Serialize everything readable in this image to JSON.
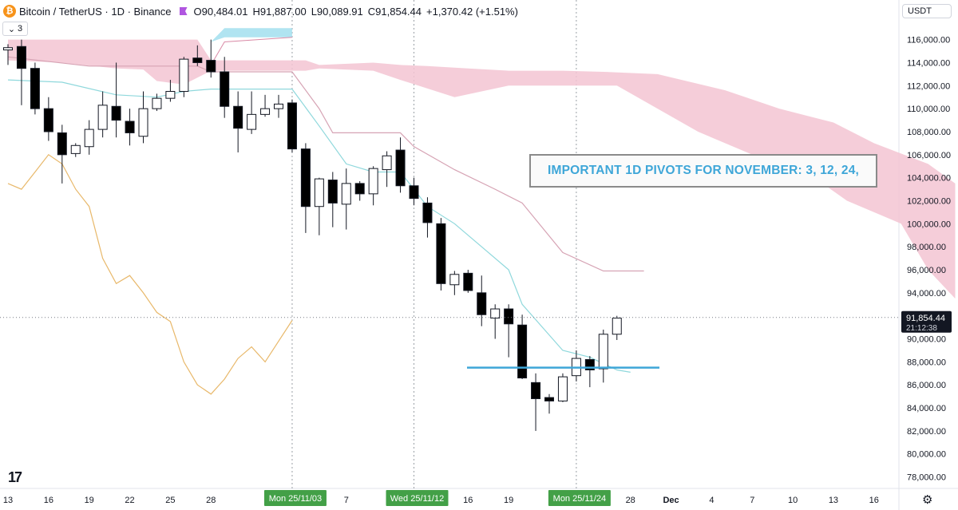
{
  "header": {
    "logo_glyph": "₿",
    "symbol": "Bitcoin / TetherUS · 1D · Binance",
    "open": "O90,484.01",
    "high": "H91,887.00",
    "low": "L90,089.91",
    "close": "C91,854.44",
    "change": "+1,370.42 (+1.51%)",
    "indicator_toggle": "3"
  },
  "toolbar": {
    "currency": "USDT"
  },
  "annotation": {
    "text": "IMPORTANT 1D PIVOTS FOR NOVEMBER: 3, 12, 24,"
  },
  "chart_data": {
    "type": "candlestick",
    "ylim": [
      77000,
      117500
    ],
    "y_ticks": [
      78000,
      80000,
      82000,
      84000,
      86000,
      88000,
      90000,
      92000,
      94000,
      96000,
      98000,
      100000,
      102000,
      104000,
      106000,
      108000,
      110000,
      112000,
      114000,
      116000
    ],
    "y_tick_labels": [
      "78,000.00",
      "80,000.00",
      "82,000.00",
      "84,000.00",
      "86,000.00",
      "88,000.00",
      "90,000.00",
      "92,000.00",
      "94,000.00",
      "96,000.00",
      "98,000.00",
      "100,000.00",
      "102,000.00",
      "104,000.00",
      "106,000.00",
      "108,000.00",
      "110,000.00",
      "112,000.00",
      "114,000.00",
      "116,000.00"
    ],
    "x_ticks": [
      {
        "label": "13",
        "i": 0
      },
      {
        "label": "16",
        "i": 3
      },
      {
        "label": "19",
        "i": 6
      },
      {
        "label": "22",
        "i": 9
      },
      {
        "label": "25",
        "i": 12
      },
      {
        "label": "28",
        "i": 15
      },
      {
        "label": "7",
        "i": 25
      },
      {
        "label": "16",
        "i": 34
      },
      {
        "label": "19",
        "i": 37
      },
      {
        "label": "28",
        "i": 46
      },
      {
        "label": "Dec",
        "i": 49,
        "bold": true
      },
      {
        "label": "4",
        "i": 52
      },
      {
        "label": "7",
        "i": 55
      },
      {
        "label": "10",
        "i": 58
      },
      {
        "label": "13",
        "i": 61
      },
      {
        "label": "16",
        "i": 64
      }
    ],
    "highlighted_dates": [
      {
        "label": "Mon 25/11/03",
        "i": 21
      },
      {
        "label": "Wed 25/11/12",
        "i": 30
      },
      {
        "label": "Mon 25/11/24",
        "i": 42
      }
    ],
    "last_price": {
      "value": 91854.44,
      "label": "91,854.44",
      "countdown": "21:12:38"
    },
    "pivot_level": 87500,
    "candles": [
      [
        115100,
        115600,
        113800,
        115300
      ],
      [
        115400,
        116000,
        110300,
        113500
      ],
      [
        113500,
        114000,
        109500,
        110000
      ],
      [
        110000,
        111000,
        107200,
        108000
      ],
      [
        107900,
        108600,
        103500,
        106000
      ],
      [
        106100,
        107000,
        105800,
        106800
      ],
      [
        106700,
        109000,
        106000,
        108200
      ],
      [
        108200,
        111500,
        107500,
        110300
      ],
      [
        110200,
        114000,
        107500,
        109000
      ],
      [
        108900,
        110000,
        106800,
        107900
      ],
      [
        107600,
        111500,
        107000,
        110000
      ],
      [
        110000,
        111300,
        109800,
        110900
      ],
      [
        110900,
        112500,
        110600,
        111500
      ],
      [
        111500,
        114500,
        111000,
        114300
      ],
      [
        114400,
        115500,
        113700,
        114000
      ],
      [
        114200,
        116000,
        112700,
        113200
      ],
      [
        113200,
        114500,
        109200,
        110200
      ],
      [
        110200,
        111500,
        106200,
        108300
      ],
      [
        108200,
        111500,
        107800,
        109500
      ],
      [
        109500,
        111200,
        109300,
        110000
      ],
      [
        110000,
        111200,
        109200,
        110400
      ],
      [
        110500,
        110800,
        106200,
        106500
      ],
      [
        106500,
        107000,
        99200,
        101500
      ],
      [
        101500,
        104000,
        99000,
        103900
      ],
      [
        103800,
        104500,
        99700,
        101800
      ],
      [
        101700,
        104800,
        99500,
        103500
      ],
      [
        103500,
        103700,
        102000,
        102600
      ],
      [
        102600,
        105000,
        101600,
        104800
      ],
      [
        104700,
        106300,
        103200,
        105900
      ],
      [
        106400,
        107500,
        102700,
        103300
      ],
      [
        103300,
        104000,
        101600,
        102200
      ],
      [
        101800,
        102300,
        98800,
        100100
      ],
      [
        100000,
        100500,
        94200,
        94800
      ],
      [
        94700,
        95900,
        93800,
        95600
      ],
      [
        95700,
        96000,
        94000,
        94200
      ],
      [
        94000,
        95500,
        91100,
        92100
      ],
      [
        91800,
        93000,
        90000,
        92600
      ],
      [
        92600,
        93000,
        88400,
        91300
      ],
      [
        91200,
        92100,
        86500,
        86600
      ],
      [
        86200,
        87000,
        82000,
        84800
      ],
      [
        84900,
        85200,
        83500,
        84600
      ],
      [
        84600,
        87000,
        84500,
        86700
      ],
      [
        86800,
        89000,
        86300,
        88300
      ],
      [
        88200,
        88500,
        85800,
        87300
      ],
      [
        87400,
        90800,
        86200,
        90400
      ],
      [
        90400,
        92000,
        89900,
        91800
      ]
    ],
    "kijun": [
      [
        0,
        114500
      ],
      [
        6,
        113700
      ],
      [
        7,
        113700
      ],
      [
        14,
        113700
      ],
      [
        15,
        113200
      ],
      [
        21,
        113200
      ],
      [
        23,
        110000
      ],
      [
        24,
        107900
      ],
      [
        29,
        107900
      ],
      [
        30,
        106700
      ],
      [
        33,
        104700
      ],
      [
        36,
        103000
      ],
      [
        38,
        101800
      ],
      [
        41,
        97500
      ],
      [
        44,
        95900
      ],
      [
        47,
        95900
      ]
    ],
    "tenkan": [
      [
        0,
        112500
      ],
      [
        4,
        112300
      ],
      [
        8,
        111200
      ],
      [
        11,
        111000
      ],
      [
        13,
        111500
      ],
      [
        15,
        111700
      ],
      [
        21,
        111700
      ],
      [
        23,
        108500
      ],
      [
        25,
        105200
      ],
      [
        27,
        104500
      ],
      [
        29,
        104500
      ],
      [
        31,
        101500
      ],
      [
        33,
        100000
      ],
      [
        35,
        98000
      ],
      [
        37,
        96000
      ],
      [
        38,
        93000
      ],
      [
        41,
        89000
      ],
      [
        43,
        88400
      ],
      [
        45,
        87300
      ],
      [
        46,
        87100
      ]
    ],
    "chikou": [
      [
        0,
        103500
      ],
      [
        1,
        103000
      ],
      [
        2,
        104500
      ],
      [
        3,
        106000
      ],
      [
        4,
        105200
      ],
      [
        5,
        103000
      ],
      [
        6,
        101500
      ],
      [
        7,
        97000
      ],
      [
        8,
        94800
      ],
      [
        9,
        95500
      ],
      [
        10,
        94000
      ],
      [
        11,
        92300
      ],
      [
        12,
        91500
      ],
      [
        13,
        88000
      ],
      [
        14,
        86000
      ],
      [
        15,
        85200
      ],
      [
        16,
        86500
      ],
      [
        17,
        88300
      ],
      [
        18,
        89300
      ],
      [
        19,
        88000
      ],
      [
        20,
        89800
      ],
      [
        21,
        91600
      ]
    ],
    "cloud_pink_upper": [
      [
        0,
        116000
      ],
      [
        14,
        116000
      ],
      [
        15,
        114200
      ],
      [
        22,
        114200
      ],
      [
        23,
        113800
      ],
      [
        27,
        114000
      ],
      [
        29,
        113800
      ],
      [
        31,
        113700
      ],
      [
        34,
        113500
      ],
      [
        37,
        113300
      ],
      [
        41,
        113300
      ],
      [
        44,
        113200
      ],
      [
        48,
        113000
      ],
      [
        53,
        111600
      ],
      [
        57,
        110000
      ],
      [
        61,
        108800
      ],
      [
        64,
        107000
      ],
      [
        68,
        105200
      ],
      [
        70,
        103500
      ]
    ],
    "cloud_pink_lower": [
      [
        0,
        114200
      ],
      [
        4,
        114000
      ],
      [
        8,
        113500
      ],
      [
        10,
        113400
      ],
      [
        11,
        112400
      ],
      [
        13,
        112100
      ],
      [
        15,
        113300
      ],
      [
        22,
        113300
      ],
      [
        23,
        113500
      ],
      [
        27,
        113300
      ],
      [
        29,
        112500
      ],
      [
        33,
        111000
      ],
      [
        37,
        112000
      ],
      [
        41,
        112000
      ],
      [
        45,
        112000
      ],
      [
        48,
        110000
      ],
      [
        51,
        108000
      ],
      [
        55,
        106000
      ],
      [
        59,
        104500
      ],
      [
        62,
        102000
      ],
      [
        66,
        100000
      ],
      [
        68,
        96000
      ],
      [
        70,
        93500
      ]
    ],
    "cloud_blue_upper": [
      [
        15,
        115800
      ],
      [
        16,
        117000
      ],
      [
        21,
        117000
      ],
      [
        21,
        116200
      ],
      [
        16,
        116200
      ]
    ],
    "cloud_blue_lower": [
      [
        15,
        113800
      ],
      [
        16,
        115800
      ],
      [
        21,
        116200
      ]
    ]
  }
}
